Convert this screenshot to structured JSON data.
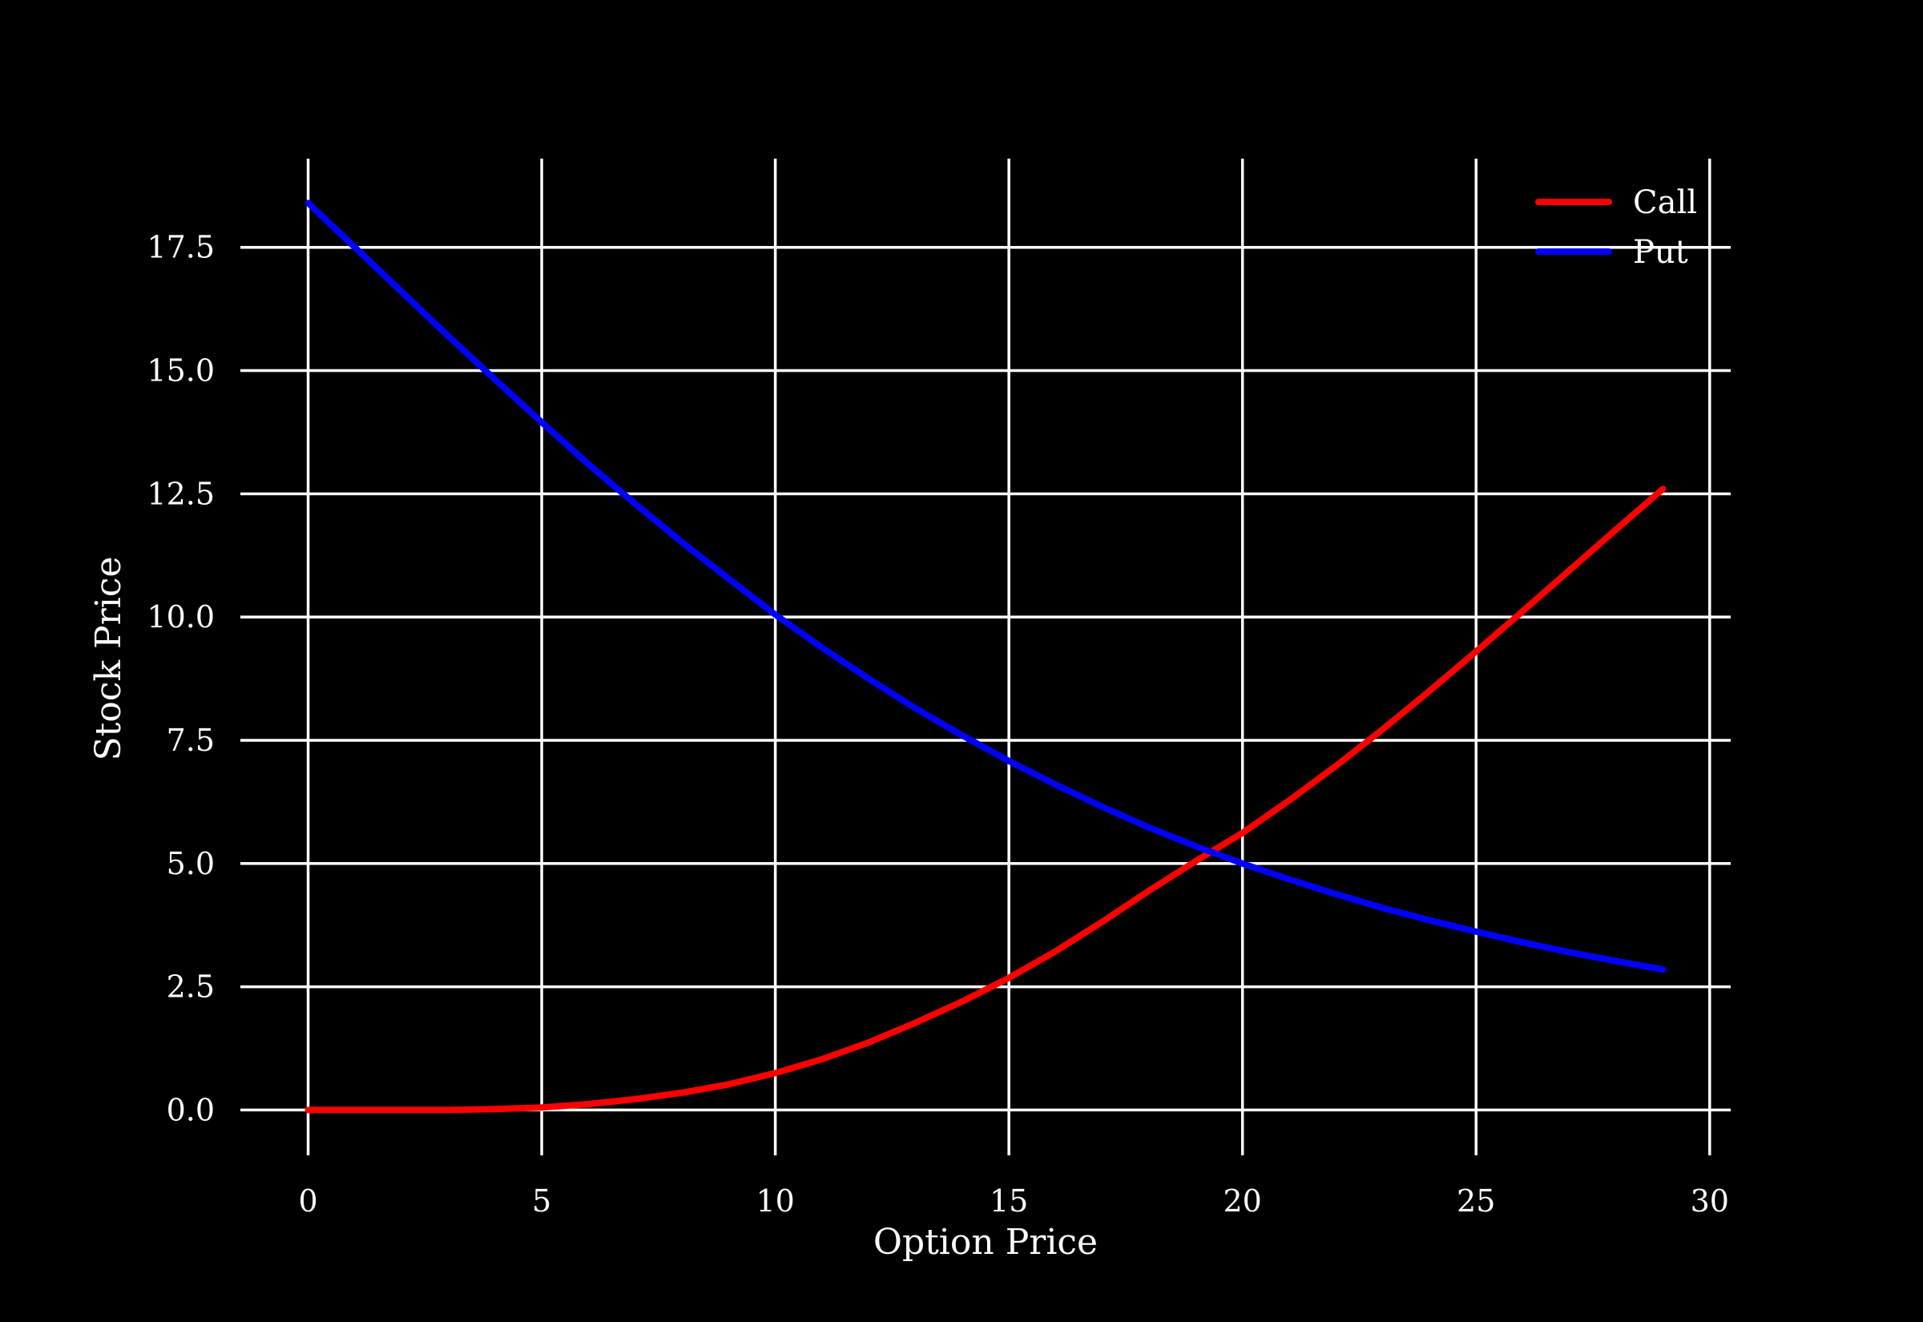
{
  "chart_data": {
    "type": "line",
    "title": "",
    "xlabel": "Option Price",
    "ylabel": "Stock Price",
    "xlim": [
      -1.45,
      30.45
    ],
    "ylim": [
      -0.92,
      19.3
    ],
    "x_ticks": [
      0,
      5,
      10,
      15,
      20,
      25,
      30
    ],
    "x_tick_labels": [
      "0",
      "5",
      "10",
      "15",
      "20",
      "25",
      "30"
    ],
    "y_ticks": [
      0,
      2.5,
      5,
      7.5,
      10,
      12.5,
      15,
      17.5
    ],
    "y_tick_labels": [
      "0.0",
      "2.5",
      "5.0",
      "7.5",
      "10.0",
      "12.5",
      "15.0",
      "17.5"
    ],
    "grid": true,
    "legend_position": "top-right",
    "background_color": "#000000",
    "foreground_color": "#ffffff",
    "x": [
      0,
      1,
      2,
      3,
      4,
      5,
      6,
      7,
      8,
      9,
      10,
      11,
      12,
      13,
      14,
      15,
      16,
      17,
      18,
      19,
      20,
      21,
      22,
      23,
      24,
      25,
      26,
      27,
      28,
      29
    ],
    "series": [
      {
        "name": "Call",
        "color": "#ff0000",
        "values": [
          0.0,
          0.0,
          0.0,
          0.0,
          0.02,
          0.05,
          0.12,
          0.22,
          0.35,
          0.52,
          0.75,
          1.03,
          1.37,
          1.77,
          2.2,
          2.68,
          3.22,
          3.82,
          4.45,
          5.05,
          5.62,
          6.28,
          6.98,
          7.72,
          8.5,
          9.3,
          10.12,
          10.95,
          11.78,
          12.6
        ]
      },
      {
        "name": "Put",
        "color": "#0000ff",
        "values": [
          18.4,
          17.5,
          16.6,
          15.7,
          14.82,
          13.95,
          13.1,
          12.3,
          11.52,
          10.78,
          10.05,
          9.38,
          8.75,
          8.15,
          7.6,
          7.08,
          6.6,
          6.15,
          5.73,
          5.35,
          5.0,
          4.68,
          4.38,
          4.1,
          3.85,
          3.62,
          3.4,
          3.2,
          3.02,
          2.85
        ]
      }
    ]
  }
}
